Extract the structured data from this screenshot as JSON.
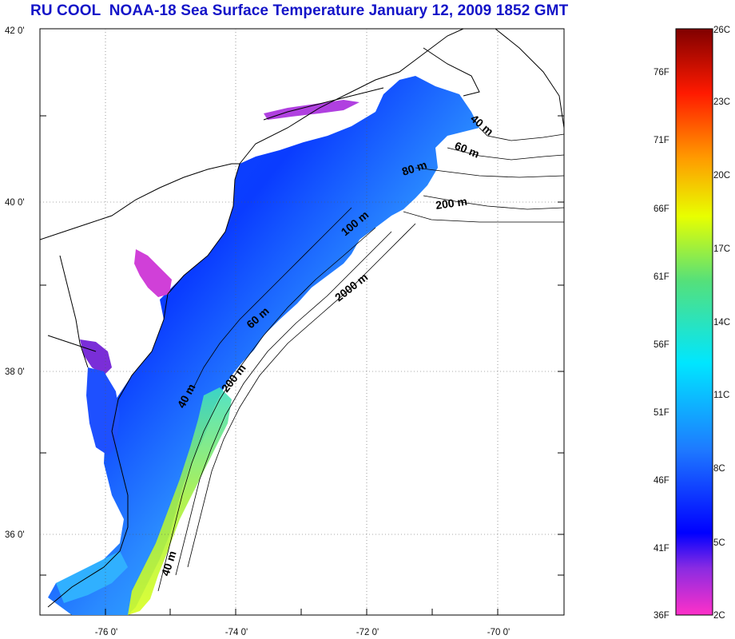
{
  "title": "RU COOL  NOAA-18 Sea Surface Temperature January 12, 2009 1852 GMT",
  "latitude_labels": [
    "42 0'",
    "40 0'",
    "38 0'",
    "36 0'"
  ],
  "longitude_labels": [
    "-76 0'",
    "-74 0'",
    "-72 0'",
    "-70 0'"
  ],
  "colorbar": {
    "fahrenheit_labels": [
      "76F",
      "71F",
      "66F",
      "61F",
      "56F",
      "51F",
      "46F",
      "41F",
      "36F"
    ],
    "celsius_labels": [
      "26C",
      "23C",
      "20C",
      "17C",
      "14C",
      "11C",
      "8C",
      "5C",
      "2C"
    ],
    "colors": [
      "#ff30c8",
      "#8a2be2",
      "#0000ff",
      "#1e78ff",
      "#00e6ff",
      "#55e07a",
      "#e8ff00",
      "#ff9a00",
      "#ff1a00",
      "#800000"
    ]
  },
  "isobath_labels": [
    "40 m",
    "60 m",
    "80 m",
    "200 m",
    "100 m",
    "2000 m",
    "60 m",
    "200 m",
    "40 m",
    "40 m"
  ],
  "land_color": "#ffffff",
  "grid": "dotted"
}
